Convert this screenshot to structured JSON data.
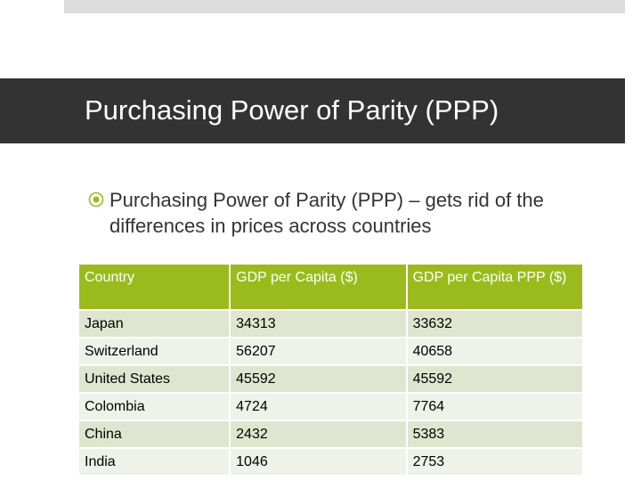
{
  "slide": {
    "title": "Purchasing Power of Parity (PPP)",
    "bullet": "Purchasing Power of Parity (PPP) – gets rid of the differences in prices across countries"
  },
  "table": {
    "headers": [
      "Country",
      "GDP per Capita ($)",
      "GDP per Capita PPP ($)"
    ],
    "rows": [
      [
        "Japan",
        "34313",
        "33632"
      ],
      [
        "Switzerland",
        "56207",
        "40658"
      ],
      [
        "United States",
        "45592",
        "45592"
      ],
      [
        "Colombia",
        "4724",
        "7764"
      ],
      [
        "China",
        "2432",
        "5383"
      ],
      [
        "India",
        "1046",
        "2753"
      ]
    ]
  },
  "colors": {
    "title_bar": "#333333",
    "header_bg": "#9bbb1c",
    "row_dark": "#dfe5cf",
    "row_light": "#eff2e8"
  }
}
